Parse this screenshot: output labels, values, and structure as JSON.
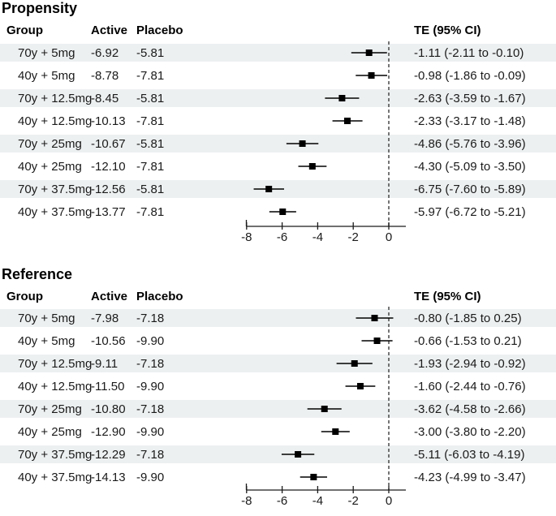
{
  "colors": {
    "row_band": "#edf0f1",
    "text": "#1a1a1a",
    "title": "#000000",
    "marker": "#000000",
    "axis": "#1a1a1a",
    "zero_line": "#3c3c3c"
  },
  "chart_data": [
    {
      "type": "forest",
      "title": "Propensity",
      "columns": [
        "Group",
        "Active",
        "Placebo",
        "TE (95% CI)"
      ],
      "axis_ticks": [
        -8,
        -6,
        -4,
        -2,
        0
      ],
      "zero_reference": 0,
      "xlim": [
        -8.6,
        1
      ],
      "legend_position": "none",
      "rows": [
        {
          "group": "70y + 5mg",
          "active": "-6.92",
          "placebo": "-5.81",
          "te": -1.11,
          "ci_low": -2.11,
          "ci_high": -0.1,
          "te_label": "-1.11 (-2.11 to -0.10)"
        },
        {
          "group": "40y + 5mg",
          "active": "-8.78",
          "placebo": "-7.81",
          "te": -0.98,
          "ci_low": -1.86,
          "ci_high": -0.09,
          "te_label": "-0.98 (-1.86 to -0.09)"
        },
        {
          "group": "70y + 12.5mg",
          "active": "-8.45",
          "placebo": "-5.81",
          "te": -2.63,
          "ci_low": -3.59,
          "ci_high": -1.67,
          "te_label": "-2.63 (-3.59 to -1.67)"
        },
        {
          "group": "40y + 12.5mg",
          "active": "-10.13",
          "placebo": "-7.81",
          "te": -2.33,
          "ci_low": -3.17,
          "ci_high": -1.48,
          "te_label": "-2.33 (-3.17 to -1.48)"
        },
        {
          "group": "70y + 25mg",
          "active": "-10.67",
          "placebo": "-5.81",
          "te": -4.86,
          "ci_low": -5.76,
          "ci_high": -3.96,
          "te_label": "-4.86 (-5.76 to -3.96)"
        },
        {
          "group": "40y + 25mg",
          "active": "-12.10",
          "placebo": "-7.81",
          "te": -4.3,
          "ci_low": -5.09,
          "ci_high": -3.5,
          "te_label": "-4.30 (-5.09 to -3.50)"
        },
        {
          "group": "70y + 37.5mg",
          "active": "-12.56",
          "placebo": "-5.81",
          "te": -6.75,
          "ci_low": -7.6,
          "ci_high": -5.89,
          "te_label": "-6.75 (-7.60 to -5.89)"
        },
        {
          "group": "40y + 37.5mg",
          "active": "-13.77",
          "placebo": "-7.81",
          "te": -5.97,
          "ci_low": -6.72,
          "ci_high": -5.21,
          "te_label": "-5.97 (-6.72 to -5.21)"
        }
      ]
    },
    {
      "type": "forest",
      "title": "Reference",
      "columns": [
        "Group",
        "Active",
        "Placebo",
        "TE (95% CI)"
      ],
      "axis_ticks": [
        -8,
        -6,
        -4,
        -2,
        0
      ],
      "zero_reference": 0,
      "xlim": [
        -8.6,
        1
      ],
      "legend_position": "none",
      "rows": [
        {
          "group": "70y + 5mg",
          "active": "-7.98",
          "placebo": "-7.18",
          "te": -0.8,
          "ci_low": -1.85,
          "ci_high": 0.25,
          "te_label": "-0.80 (-1.85 to 0.25)"
        },
        {
          "group": "40y + 5mg",
          "active": "-10.56",
          "placebo": "-9.90",
          "te": -0.66,
          "ci_low": -1.53,
          "ci_high": 0.21,
          "te_label": "-0.66 (-1.53 to 0.21)"
        },
        {
          "group": "70y + 12.5mg",
          "active": "-9.11",
          "placebo": "-7.18",
          "te": -1.93,
          "ci_low": -2.94,
          "ci_high": -0.92,
          "te_label": "-1.93 (-2.94 to -0.92)"
        },
        {
          "group": "40y + 12.5mg",
          "active": "-11.50",
          "placebo": "-9.90",
          "te": -1.6,
          "ci_low": -2.44,
          "ci_high": -0.76,
          "te_label": "-1.60 (-2.44 to -0.76)"
        },
        {
          "group": "70y + 25mg",
          "active": "-10.80",
          "placebo": "-7.18",
          "te": -3.62,
          "ci_low": -4.58,
          "ci_high": -2.66,
          "te_label": "-3.62 (-4.58 to -2.66)"
        },
        {
          "group": "40y + 25mg",
          "active": "-12.90",
          "placebo": "-9.90",
          "te": -3.0,
          "ci_low": -3.8,
          "ci_high": -2.2,
          "te_label": "-3.00 (-3.80 to -2.20)"
        },
        {
          "group": "70y + 37.5mg",
          "active": "-12.29",
          "placebo": "-7.18",
          "te": -5.11,
          "ci_low": -6.03,
          "ci_high": -4.19,
          "te_label": "-5.11 (-6.03 to -4.19)"
        },
        {
          "group": "40y + 37.5mg",
          "active": "-14.13",
          "placebo": "-9.90",
          "te": -4.23,
          "ci_low": -4.99,
          "ci_high": -3.47,
          "te_label": "-4.23 (-4.99 to -3.47)"
        }
      ]
    }
  ]
}
